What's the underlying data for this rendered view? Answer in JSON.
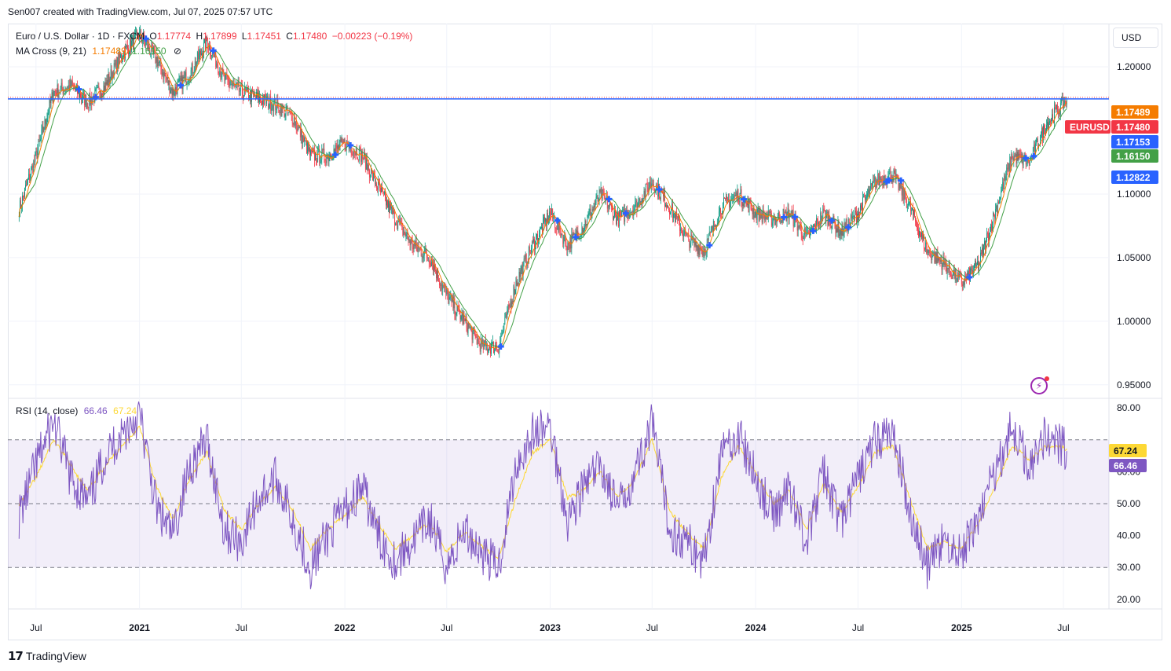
{
  "header": {
    "credit": "Sen007 created with TradingView.com, Jul 07, 2025 07:57 UTC"
  },
  "symbol": {
    "name": "Euro / U.S. Dollar · 1D · FXCM",
    "o_label": "O",
    "o_value": "1.17774",
    "h_label": "H",
    "h_value": "1.17899",
    "l_label": "L",
    "l_value": "1.17451",
    "c_label": "C",
    "c_value": "1.17480",
    "change": "−0.00223 (−0.19%)"
  },
  "ma_indicator": {
    "label": "MA Cross (9, 21)",
    "fast": "1.17489",
    "slow": "1.16150",
    "visibility_icon": "eye-off-icon"
  },
  "rsi_indicator": {
    "label": "RSI (14, close)",
    "rsi": "66.46",
    "ma": "67.24"
  },
  "currency_button": "USD",
  "brand": "TradingView",
  "price_tags": [
    {
      "text": "1.17489",
      "color": "#f57c00"
    },
    {
      "text": "EURUSD",
      "color": "#f23645"
    },
    {
      "text": "1.17480",
      "color": "#f23645"
    },
    {
      "text": "1.17153",
      "color": "#2962ff"
    },
    {
      "text": "1.16150",
      "color": "#43a047"
    },
    {
      "text": "1.12822",
      "color": "#2962ff"
    }
  ],
  "rsi_tags": [
    {
      "text": "67.24",
      "color": "#fdd835",
      "text_color": "#131722"
    },
    {
      "text": "66.46",
      "color": "#7e57c2",
      "text_color": "#ffffff"
    }
  ],
  "colors": {
    "up": "#089981",
    "down": "#f23645",
    "ma_fast": "#f57c00",
    "ma_slow": "#43a047",
    "cross": "#2962ff",
    "rsi": "#7e57c2",
    "rsi_ma": "#fdd835",
    "hline": "#2962ff",
    "band": "#7e57c2"
  },
  "chart_data": [
    {
      "type": "line",
      "title": "Euro / U.S. Dollar · 1D · FXCM",
      "y_ticks": [
        "1.20000",
        "1.10000",
        "1.05000",
        "1.00000",
        "0.95000"
      ],
      "y_tick_values": [
        1.2,
        1.1,
        1.05,
        1.0,
        0.95
      ],
      "ylim": [
        0.94,
        1.234
      ],
      "x_ticks": [
        "Jul",
        "2021",
        "Jul",
        "2022",
        "Jul",
        "2023",
        "Jul",
        "2024",
        "Jul",
        "2025",
        "Jul"
      ],
      "x_tick_dates": [
        "2020-07-01",
        "2021-01-01",
        "2021-07-01",
        "2022-01-01",
        "2022-07-01",
        "2023-01-01",
        "2023-07-01",
        "2024-01-01",
        "2024-07-01",
        "2025-01-01",
        "2025-07-01"
      ],
      "x_tick_years": [
        false,
        true,
        false,
        true,
        false,
        true,
        false,
        true,
        false,
        true,
        false
      ],
      "series": [
        {
          "x": [
            "2020-06-01",
            "2020-07-01",
            "2020-08-01",
            "2020-09-01",
            "2020-10-01",
            "2020-11-01",
            "2020-12-01",
            "2021-01-01",
            "2021-02-01",
            "2021-03-01",
            "2021-04-01",
            "2021-05-01",
            "2021-06-01",
            "2021-07-01",
            "2021-08-01",
            "2021-09-01",
            "2021-10-01",
            "2021-11-01",
            "2021-12-01",
            "2022-01-01",
            "2022-02-01",
            "2022-03-01",
            "2022-04-01",
            "2022-05-01",
            "2022-06-01",
            "2022-07-01",
            "2022-08-01",
            "2022-09-01",
            "2022-10-01",
            "2022-11-01",
            "2022-12-01",
            "2023-01-01",
            "2023-02-01",
            "2023-03-01",
            "2023-04-01",
            "2023-05-01",
            "2023-06-01",
            "2023-07-01",
            "2023-08-01",
            "2023-09-01",
            "2023-10-01",
            "2023-11-01",
            "2023-12-01",
            "2024-01-01",
            "2024-02-01",
            "2024-03-01",
            "2024-04-01",
            "2024-05-01",
            "2024-06-01",
            "2024-07-01",
            "2024-08-01",
            "2024-09-01",
            "2024-10-01",
            "2024-11-01",
            "2024-12-01",
            "2025-01-01",
            "2025-02-01",
            "2025-03-01",
            "2025-04-01",
            "2025-05-01",
            "2025-06-01",
            "2025-07-07"
          ],
          "values": [
            1.088,
            1.13,
            1.18,
            1.185,
            1.172,
            1.185,
            1.21,
            1.225,
            1.205,
            1.18,
            1.195,
            1.22,
            1.19,
            1.18,
            1.175,
            1.17,
            1.16,
            1.13,
            1.13,
            1.14,
            1.13,
            1.105,
            1.08,
            1.06,
            1.05,
            1.02,
            1.0,
            0.98,
            0.98,
            1.03,
            1.06,
            1.085,
            1.06,
            1.075,
            1.1,
            1.08,
            1.09,
            1.11,
            1.09,
            1.065,
            1.055,
            1.09,
            1.1,
            1.085,
            1.08,
            1.085,
            1.065,
            1.085,
            1.07,
            1.085,
            1.11,
            1.115,
            1.09,
            1.055,
            1.045,
            1.03,
            1.045,
            1.085,
            1.13,
            1.125,
            1.155,
            1.1748
          ]
        }
      ]
    },
    {
      "type": "line",
      "title": "RSI (14, close)",
      "y_ticks": [
        "80.00",
        "60.00",
        "50.00",
        "40.00",
        "30.00",
        "20.00"
      ],
      "y_tick_values": [
        80,
        60,
        50,
        40,
        30,
        20
      ],
      "ylim": [
        17,
        83
      ],
      "band": [
        30,
        70
      ],
      "midline": 50,
      "series": [
        {
          "name": "RSI",
          "values": [
            46,
            62,
            76,
            58,
            50,
            65,
            72,
            78,
            48,
            40,
            62,
            70,
            42,
            38,
            52,
            58,
            45,
            30,
            40,
            48,
            55,
            40,
            32,
            38,
            45,
            30,
            42,
            35,
            30,
            62,
            72,
            74,
            45,
            55,
            62,
            48,
            60,
            75,
            42,
            38,
            32,
            66,
            72,
            58,
            46,
            55,
            38,
            60,
            44,
            58,
            70,
            72,
            48,
            30,
            38,
            34,
            46,
            60,
            74,
            62,
            72,
            66.46
          ]
        },
        {
          "name": "RSI-based MA",
          "values": [
            50,
            58,
            70,
            62,
            54,
            62,
            68,
            74,
            55,
            45,
            58,
            66,
            48,
            42,
            50,
            55,
            48,
            36,
            42,
            46,
            52,
            44,
            36,
            40,
            44,
            35,
            41,
            37,
            33,
            52,
            66,
            70,
            52,
            54,
            60,
            52,
            58,
            70,
            48,
            41,
            36,
            58,
            68,
            60,
            50,
            54,
            42,
            56,
            47,
            55,
            66,
            68,
            52,
            36,
            38,
            36,
            44,
            55,
            68,
            64,
            68,
            67.24
          ]
        }
      ]
    }
  ]
}
